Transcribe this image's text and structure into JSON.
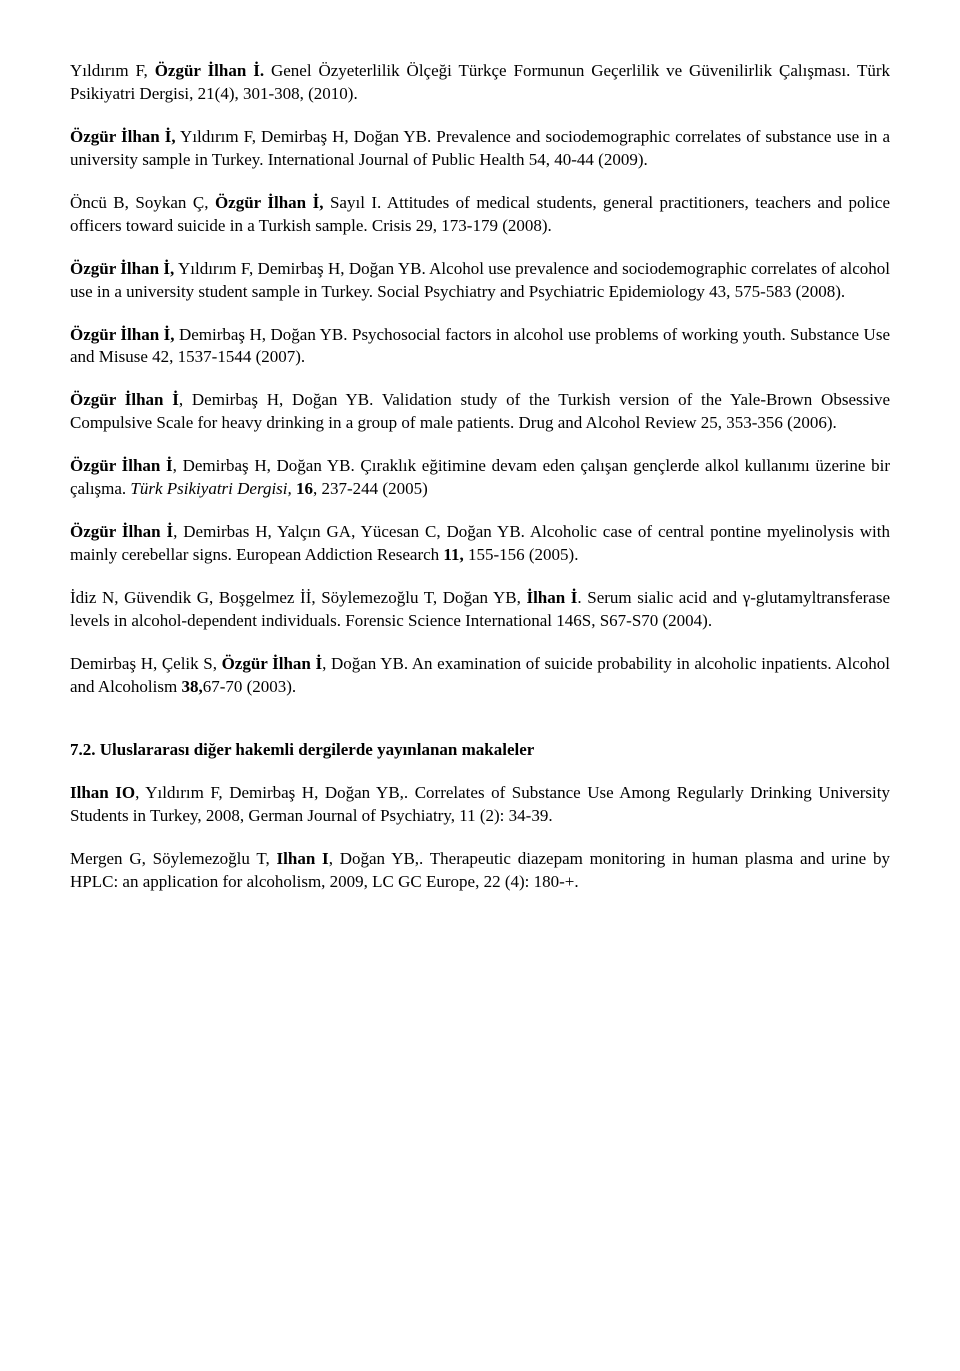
{
  "refs": [
    {
      "parts": [
        {
          "text": "Yıldırım F, ",
          "bold": false
        },
        {
          "text": "Özgür İlhan İ.",
          "bold": true
        },
        {
          "text": " Genel Özyeterlilik Ölçeği Türkçe Formunun Geçerlilik ve Güvenilirlik Çalışması. Türk Psikiyatri Dergisi, 21(4), 301-308, (2010).",
          "bold": false
        }
      ]
    },
    {
      "parts": [
        {
          "text": "Özgür İlhan İ,",
          "bold": true
        },
        {
          "text": " Yıldırım F, Demirbaş H, Doğan YB. Prevalence and sociodemographic correlates of substance use in a university sample in Turkey. International Journal of Public Health 54, 40-44 (2009).",
          "bold": false
        }
      ]
    },
    {
      "parts": [
        {
          "text": "Öncü B, Soykan Ç, ",
          "bold": false
        },
        {
          "text": "Özgür İlhan İ,",
          "bold": true
        },
        {
          "text": " Sayıl I. Attitudes of medical students, general practitioners, teachers and police officers toward suicide in a Turkish sample. Crisis 29, 173-179 (2008).",
          "bold": false
        }
      ]
    },
    {
      "parts": [
        {
          "text": "Özgür İlhan İ,",
          "bold": true
        },
        {
          "text": " Yıldırım F, Demirbaş H, Doğan YB. Alcohol use prevalence and sociodemographic correlates of alcohol use in a university student sample in Turkey. Social Psychiatry and Psychiatric Epidemiology 43, 575-583 (2008).",
          "bold": false
        }
      ]
    },
    {
      "parts": [
        {
          "text": "Özgür İlhan İ,",
          "bold": true
        },
        {
          "text": " Demirbaş H, Doğan YB. Psychosocial factors in alcohol use problems of working youth. Substance Use and Misuse 42, 1537-1544 (2007).",
          "bold": false
        }
      ]
    },
    {
      "parts": [
        {
          "text": "Özgür İlhan İ",
          "bold": true
        },
        {
          "text": ", Demirbaş H, Doğan YB. Validation study of the Turkish version of  the Yale-Brown Obsessive Compulsive Scale for heavy drinking in a group of male patients. Drug and Alcohol Review 25, 353-356 (2006).",
          "bold": false
        }
      ]
    },
    {
      "parts": [
        {
          "text": "Özgür İlhan İ",
          "bold": true
        },
        {
          "text": ", Demirbaş H, Doğan YB. Çıraklık eğitimine devam eden çalışan gençlerde alkol kullanımı üzerine bir çalışma. ",
          "bold": false
        },
        {
          "text": "Türk Psikiyatri Dergisi,",
          "italic": true
        },
        {
          "text": " ",
          "bold": false
        },
        {
          "text": "16",
          "bold": true
        },
        {
          "text": ", 237-244 (2005)",
          "bold": false
        }
      ]
    },
    {
      "parts": [
        {
          "text": "Özgür İlhan İ",
          "bold": true
        },
        {
          "text": ", Demirbas H, Yalçın GA, Yücesan C, Doğan YB. Alcoholic case of central pontine myelinolysis with mainly cerebellar signs. European Addiction Research ",
          "bold": false
        },
        {
          "text": "11,",
          "bold": true
        },
        {
          "text": " 155-156 (2005).",
          "bold": false
        }
      ]
    },
    {
      "parts": [
        {
          "text": "İdiz N, Güvendik G, Boşgelmez İİ, Söylemezoğlu T, Doğan YB, ",
          "bold": false
        },
        {
          "text": "İlhan İ",
          "bold": true
        },
        {
          "text": ". Serum sialic acid and γ-glutamyltransferase levels in alcohol-dependent individuals. Forensic Science International 146S, S67-S70 (2004).",
          "bold": false
        }
      ]
    },
    {
      "parts": [
        {
          "text": "Demirbaş H, Çelik S, ",
          "bold": false
        },
        {
          "text": "Özgür İlhan İ",
          "bold": true
        },
        {
          "text": ", Doğan YB. An examination of suicide probability in alcoholic inpatients. Alcohol and Alcoholism ",
          "bold": false
        },
        {
          "text": "38,",
          "bold": true
        },
        {
          "text": "67-70 (2003).",
          "bold": false
        }
      ]
    }
  ],
  "section2_heading": "7.2. Uluslararası diğer hakemli dergilerde yayınlanan makaleler",
  "refs2": [
    {
      "parts": [
        {
          "text": "Ilhan IO",
          "bold": true
        },
        {
          "text": ", Yıldırım F, Demirbaş H, Doğan YB,. Correlates of Substance Use Among Regularly Drinking University Students in Turkey, 2008, German Journal of Psychiatry, 11 (2): 34-39.",
          "bold": false
        }
      ]
    },
    {
      "parts": [
        {
          "text": "Mergen G, Söylemezoğlu T, ",
          "bold": false
        },
        {
          "text": "Ilhan I",
          "bold": true
        },
        {
          "text": ", Doğan YB,. Therapeutic diazepam monitoring in human plasma and urine by HPLC: an application for alcoholism, 2009, LC GC Europe, 22 (4): 180-+.",
          "bold": false
        }
      ]
    }
  ]
}
